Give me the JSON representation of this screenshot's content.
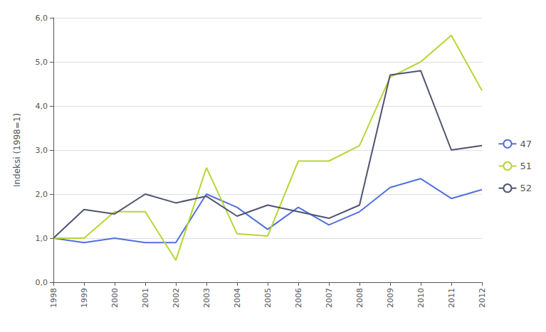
{
  "chart_data": {
    "type": "line",
    "x": [
      1998,
      1999,
      2000,
      2001,
      2002,
      2003,
      2004,
      2005,
      2006,
      2007,
      2008,
      2009,
      2010,
      2011,
      2012
    ],
    "series": [
      {
        "name": "47",
        "values": [
          1.0,
          0.9,
          1.0,
          0.9,
          0.9,
          2.0,
          1.7,
          1.2,
          1.7,
          1.3,
          1.6,
          2.15,
          2.35,
          1.9,
          2.1
        ]
      },
      {
        "name": "51",
        "values": [
          1.0,
          1.0,
          1.6,
          1.6,
          0.5,
          2.6,
          1.1,
          1.05,
          2.75,
          2.75,
          3.1,
          4.65,
          5.0,
          5.6,
          4.35
        ]
      },
      {
        "name": "52",
        "values": [
          1.0,
          1.65,
          1.55,
          2.0,
          1.8,
          1.95,
          1.5,
          1.75,
          1.6,
          1.45,
          1.75,
          4.7,
          4.8,
          3.0,
          3.1
        ]
      }
    ],
    "ylabel": "Indeksi (1998=1)",
    "xlim": [
      1998,
      2012
    ],
    "xticks": [
      1998,
      1999,
      2000,
      2001,
      2002,
      2003,
      2004,
      2005,
      2006,
      2007,
      2008,
      2009,
      2010,
      2011,
      2012
    ],
    "ylim": [
      0.0,
      6.0
    ],
    "yticks": [
      {
        "value": 0.0,
        "label": "0,0"
      },
      {
        "value": 1.0,
        "label": "1,0"
      },
      {
        "value": 2.0,
        "label": "2,0"
      },
      {
        "value": 3.0,
        "label": "3,0"
      },
      {
        "value": 4.0,
        "label": "4,0"
      },
      {
        "value": 5.0,
        "label": "5,0"
      },
      {
        "value": 6.0,
        "label": "6,0"
      }
    ],
    "grid": true,
    "legend": "right"
  }
}
